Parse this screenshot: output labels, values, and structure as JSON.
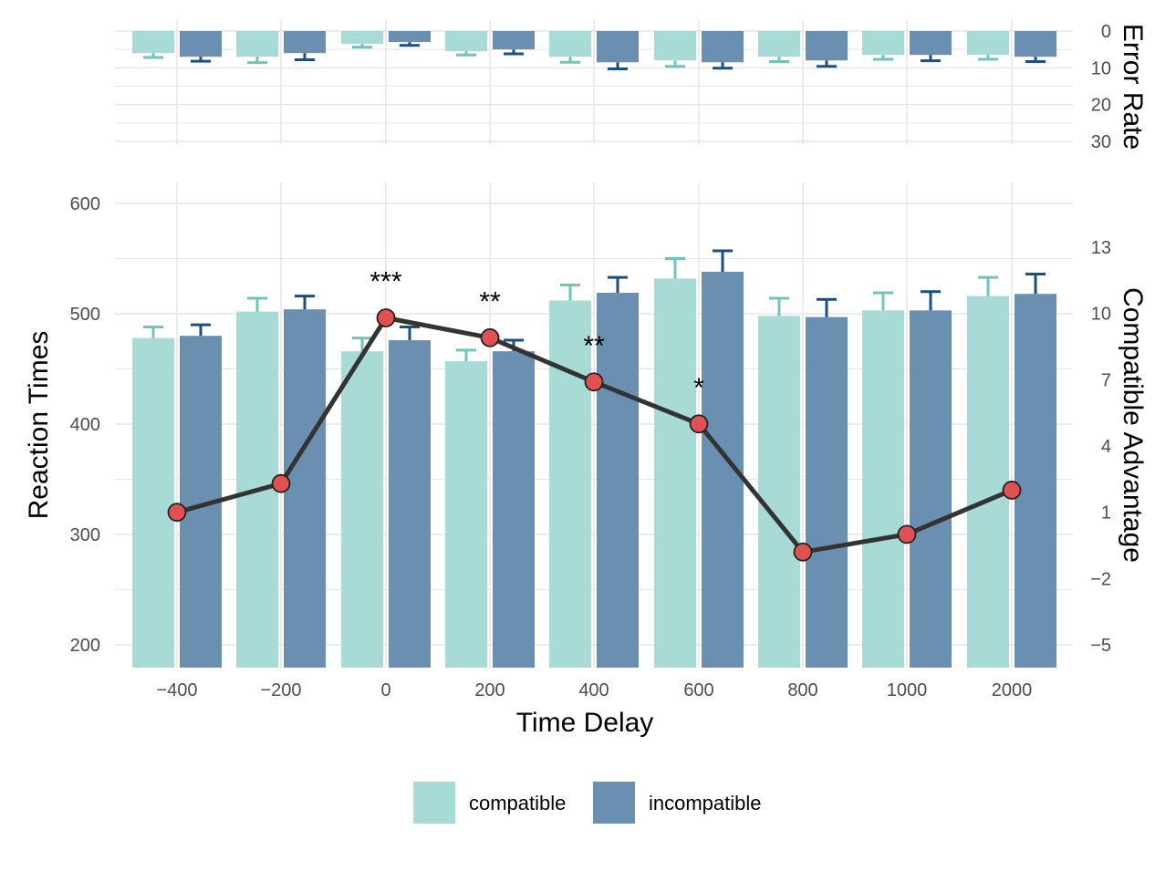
{
  "chart_data": [
    {
      "type": "bar",
      "panel": "error-rate",
      "ylabel": "Error Rate",
      "ylim": [
        0,
        30
      ],
      "y_reversed": true,
      "y_ticks": [
        "0",
        "10",
        "20",
        "30"
      ],
      "y_tick_values": [
        0,
        10,
        20,
        30
      ],
      "categories": [
        "-400",
        "-200",
        "0",
        "200",
        "400",
        "600",
        "800",
        "1000",
        "2000"
      ],
      "series": [
        {
          "name": "compatible",
          "values": [
            6.0,
            7.0,
            3.5,
            5.5,
            7.0,
            8.0,
            7.0,
            6.5,
            6.5
          ],
          "errors": [
            1.2,
            1.6,
            0.9,
            1.0,
            1.5,
            1.6,
            1.3,
            1.2,
            1.2
          ]
        },
        {
          "name": "incompatible",
          "values": [
            7.0,
            6.0,
            3.0,
            5.0,
            8.5,
            8.5,
            8.0,
            6.5,
            7.0
          ],
          "errors": [
            1.2,
            1.8,
            0.9,
            1.2,
            1.8,
            1.6,
            1.6,
            1.6,
            1.3
          ]
        }
      ],
      "grid": true
    },
    {
      "type": "bar",
      "panel": "reaction-times",
      "title": "",
      "xlabel": "Time Delay",
      "ylabel": "Reaction Times",
      "ylim": [
        180,
        620
      ],
      "y_ticks": [
        "200",
        "300",
        "400",
        "500",
        "600"
      ],
      "y_tick_values": [
        200,
        300,
        400,
        500,
        600
      ],
      "categories": [
        "−400",
        "−200",
        "0",
        "200",
        "400",
        "600",
        "800",
        "1000",
        "2000"
      ],
      "series": [
        {
          "name": "compatible",
          "values": [
            478,
            502,
            466,
            457,
            512,
            532,
            498,
            503,
            516
          ],
          "errors": [
            10,
            12,
            12,
            10,
            14,
            18,
            16,
            16,
            17
          ]
        },
        {
          "name": "incompatible",
          "values": [
            480,
            504,
            476,
            466,
            519,
            538,
            497,
            503,
            518
          ],
          "errors": [
            10,
            12,
            12,
            10,
            14,
            19,
            16,
            17,
            18
          ]
        }
      ],
      "line": {
        "name": "Compatible Advantage",
        "values": [
          1.0,
          2.3,
          9.8,
          8.9,
          6.9,
          5.0,
          -0.8,
          0.0,
          2.0
        ],
        "ylim": [
          -6,
          16
        ],
        "y_ticks": [
          "13",
          "10",
          "7",
          "4",
          "1",
          "−2",
          "−5"
        ],
        "y_tick_values": [
          13,
          10,
          7,
          4,
          1,
          -2,
          -5
        ],
        "significance": [
          "",
          "",
          "***",
          "**",
          "**",
          "*",
          "",
          "",
          ""
        ]
      },
      "legend": {
        "position": "bottom",
        "entries": [
          "compatible",
          "incompatible"
        ]
      },
      "grid": true
    }
  ],
  "colors": {
    "compatible": "#a8dbd6",
    "compatible_err": "#6fc4bc",
    "incompatible": "#6b8fb1",
    "incompatible_err": "#1a4f82",
    "line": "#333333",
    "point": "#e05252",
    "grid": "#e6e6e6",
    "text": "#4d4d4d"
  }
}
